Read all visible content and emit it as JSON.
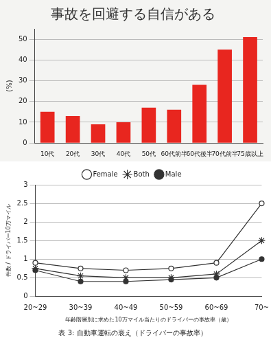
{
  "chart_data": [
    {
      "type": "bar",
      "title": "事故を回避する自信がある",
      "y_label": "(%)",
      "categories": [
        "10代",
        "20代",
        "30代",
        "40代",
        "50代",
        "60代前半",
        "60代後半",
        "70代前半",
        "75歳以上"
      ],
      "values": [
        15,
        13,
        9,
        10,
        17,
        16,
        28,
        45,
        51
      ],
      "color": "#e8261f",
      "ylim": [
        0,
        55
      ],
      "yticks": [
        0,
        10,
        20,
        30,
        40,
        50
      ],
      "grid": true
    },
    {
      "type": "line",
      "x_label": "年齢階層別に求めた10万マイル当たりのドライバーの事故率（歳）",
      "y_label": "件数 / ドライバー10万マイル",
      "subtitle": "表 3: 自動車運転の衰え（ドライバーの事故率）",
      "categories": [
        "20~29",
        "30~39",
        "40~49",
        "50~59",
        "60~69",
        "70~"
      ],
      "series": [
        {
          "name": "Female",
          "color": "#333333",
          "marker": "circle_open",
          "line_style": "solid",
          "values": [
            0.9,
            0.75,
            0.7,
            0.75,
            0.9,
            2.5
          ]
        },
        {
          "name": "Both",
          "color": "#333333",
          "marker": "star",
          "line_style": "solid",
          "values": [
            0.75,
            0.55,
            0.5,
            0.5,
            0.6,
            1.5
          ]
        },
        {
          "name": "Male",
          "color": "#333333",
          "marker": "circle",
          "line_style": "solid",
          "values": [
            0.7,
            0.4,
            0.4,
            0.45,
            0.5,
            1.0
          ]
        }
      ],
      "ylim": [
        0,
        3
      ],
      "yticks": [
        0,
        0.5,
        1,
        1.5,
        2,
        2.5,
        3
      ],
      "grid": true,
      "legend": "top"
    }
  ]
}
